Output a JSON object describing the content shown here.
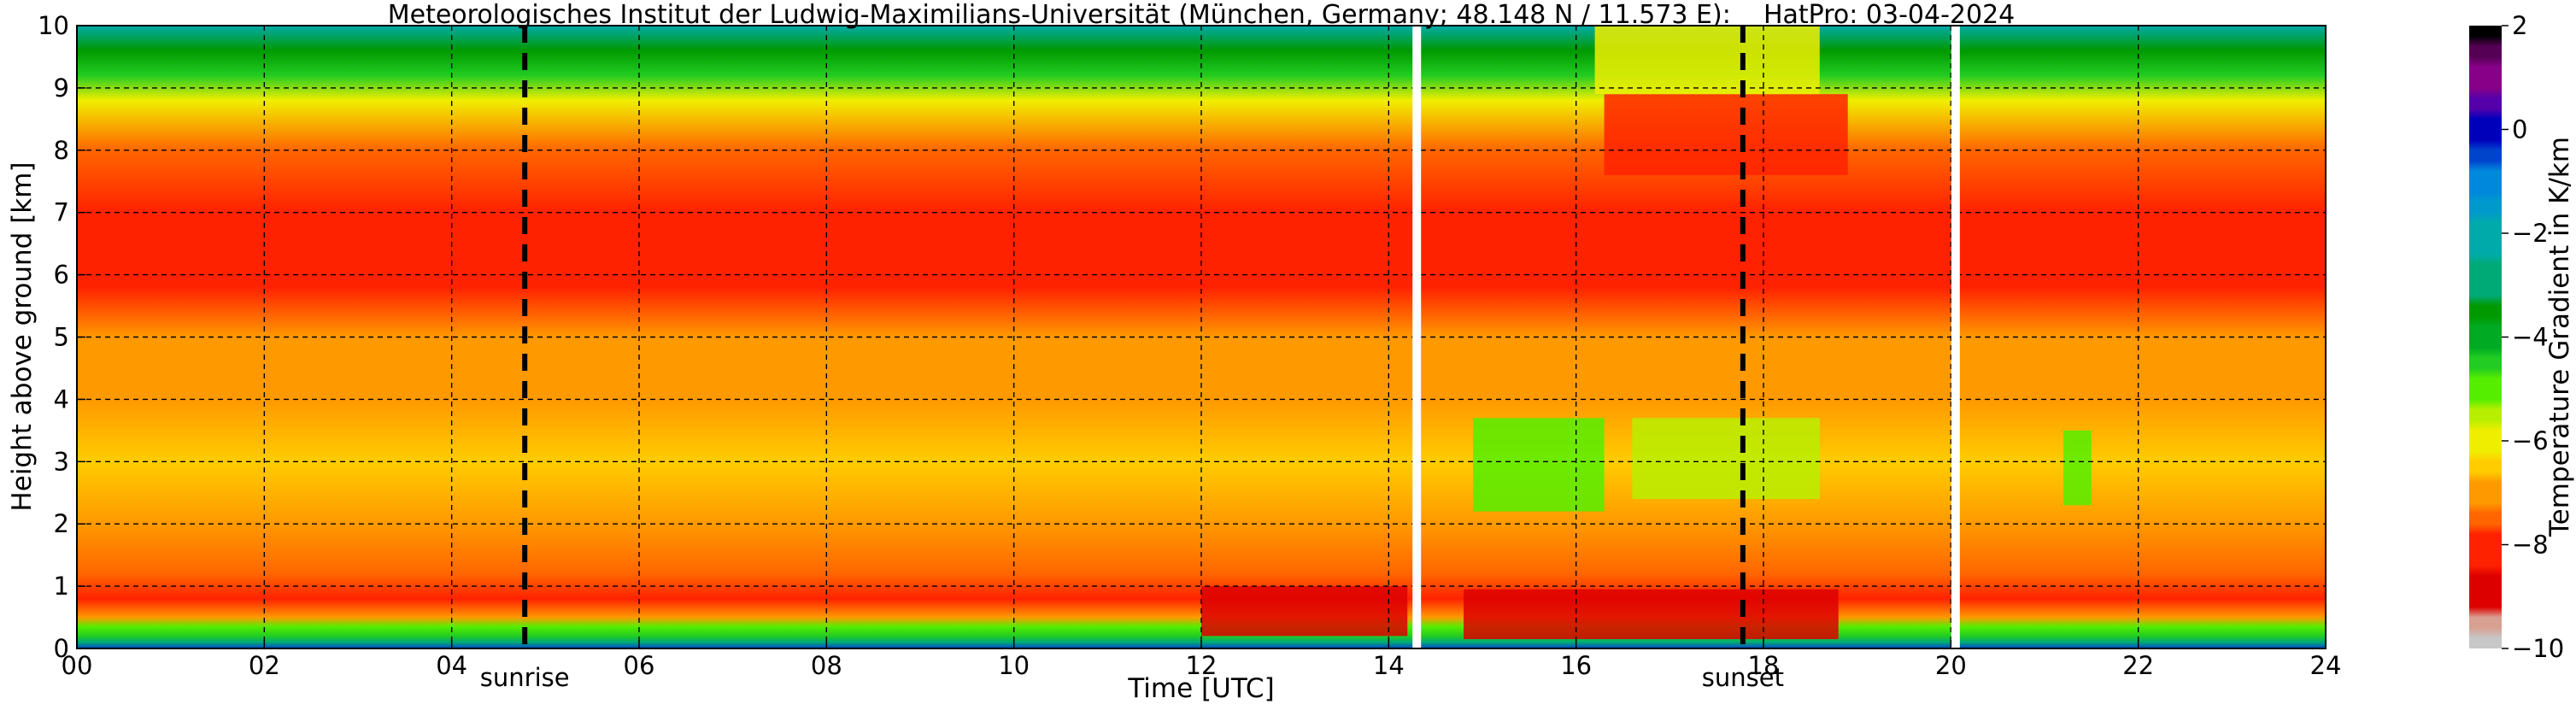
{
  "chart_data": {
    "type": "heatmap",
    "title": "Meteorologisches Institut der Ludwig-Maximilians-Universität (München, Germany; 48.148 N / 11.573 E):    HatPro: 03-04-2024",
    "xlabel": "Time [UTC]",
    "ylabel": "Height above ground [km]",
    "colorbar_label": "Temperature Gradient in K/km",
    "xlim": [
      0,
      24
    ],
    "ylim": [
      0,
      10
    ],
    "x_ticks": [
      0,
      2,
      4,
      6,
      8,
      10,
      12,
      14,
      16,
      18,
      20,
      22,
      24
    ],
    "x_tick_labels": [
      "00",
      "02",
      "04",
      "06",
      "08",
      "10",
      "12",
      "14",
      "16",
      "18",
      "20",
      "22",
      "24"
    ],
    "y_ticks": [
      0,
      1,
      2,
      3,
      4,
      5,
      6,
      7,
      8,
      9,
      10
    ],
    "y_tick_labels": [
      "0",
      "1",
      "2",
      "3",
      "4",
      "5",
      "6",
      "7",
      "8",
      "9",
      "10"
    ],
    "colorbar_range": [
      -10,
      2
    ],
    "colorbar_ticks": [
      -10,
      -8,
      -6,
      -4,
      -2,
      0,
      2
    ],
    "colorbar_tick_labels": [
      "−10",
      "−8",
      "−6",
      "−4",
      "−2",
      "0",
      "2"
    ],
    "grid": true,
    "markers": [
      {
        "label": "sunrise",
        "x": 4.78
      },
      {
        "label": "sunset",
        "x": 17.78
      }
    ],
    "data_gaps": [
      14.3,
      20.05
    ],
    "gradient_profile_heights_km": [
      0,
      0.1,
      0.2,
      0.35,
      0.5,
      0.8,
      1.2,
      2,
      3,
      4,
      5,
      5.8,
      6.2,
      6.6,
      7,
      8,
      8.8,
      9.2,
      9.6,
      10
    ],
    "gradient_profile_K_per_km": [
      -0.5,
      -3,
      -4.5,
      -5,
      -7,
      -8,
      -7.5,
      -7,
      -6.5,
      -6.8,
      -7.2,
      -7.8,
      -8.5,
      -8,
      -7.8,
      -7.6,
      -6,
      -4.5,
      -3.5,
      -2.5
    ],
    "colorbar_stops": [
      {
        "value": -10,
        "color": "#c7c7c7"
      },
      {
        "value": -9.5,
        "color": "#d8a090"
      },
      {
        "value": -9,
        "color": "#dd0000"
      },
      {
        "value": -8,
        "color": "#ff2200"
      },
      {
        "value": -7.5,
        "color": "#ff6600"
      },
      {
        "value": -7,
        "color": "#ff9900"
      },
      {
        "value": -6.5,
        "color": "#ffcc00"
      },
      {
        "value": -6,
        "color": "#f0ee00"
      },
      {
        "value": -5.5,
        "color": "#b8ee00"
      },
      {
        "value": -5,
        "color": "#55ee00"
      },
      {
        "value": -4.5,
        "color": "#22cc22"
      },
      {
        "value": -4,
        "color": "#00aa22"
      },
      {
        "value": -3.5,
        "color": "#009900"
      },
      {
        "value": -3,
        "color": "#00aa77"
      },
      {
        "value": -2,
        "color": "#00aaaa"
      },
      {
        "value": -1.5,
        "color": "#0099cc"
      },
      {
        "value": -1,
        "color": "#0088dd"
      },
      {
        "value": -0.5,
        "color": "#0044cc"
      },
      {
        "value": 0,
        "color": "#0000bb"
      },
      {
        "value": 0.5,
        "color": "#5500aa"
      },
      {
        "value": 1,
        "color": "#880088"
      },
      {
        "value": 1.5,
        "color": "#550055"
      },
      {
        "value": 2,
        "color": "#000000"
      }
    ]
  }
}
